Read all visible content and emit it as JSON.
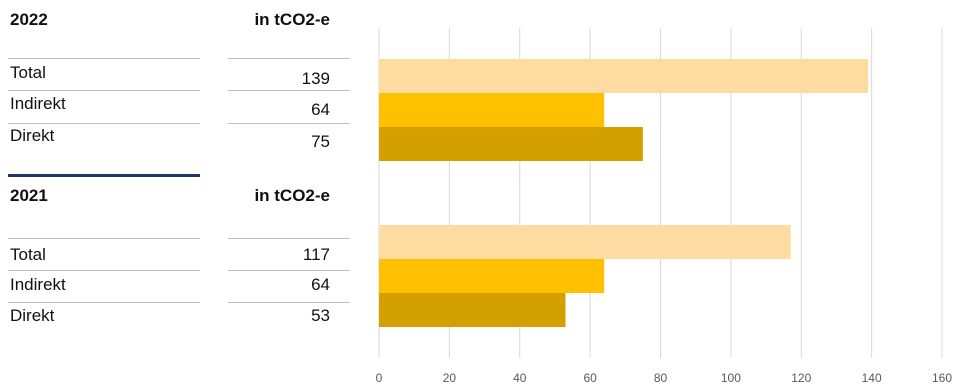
{
  "tables": [
    {
      "year": "2022",
      "unit_label": "in tCO2-e",
      "rows": [
        {
          "label": "Total",
          "value": "139"
        },
        {
          "label": "Indirekt",
          "value": "64"
        },
        {
          "label": "Direkt",
          "value": "75"
        }
      ]
    },
    {
      "year": "2021",
      "unit_label": "in tCO2-e",
      "rows": [
        {
          "label": "Total",
          "value": "117"
        },
        {
          "label": "Indirekt",
          "value": "64"
        },
        {
          "label": "Direkt",
          "value": "53"
        }
      ]
    }
  ],
  "colors": {
    "total": "#fedba0",
    "indirekt": "#ffc000",
    "direkt": "#d4a000",
    "separator": "#1f3864",
    "grid": "#d9d9d9"
  },
  "chart_data": {
    "type": "bar",
    "orientation": "horizontal",
    "groups": [
      {
        "year": "2022",
        "categories": [
          "Total",
          "Indirekt",
          "Direkt"
        ],
        "values": [
          139,
          64,
          75
        ]
      },
      {
        "year": "2021",
        "categories": [
          "Total",
          "Indirekt",
          "Direkt"
        ],
        "values": [
          117,
          64,
          53
        ]
      }
    ],
    "xlim": [
      0,
      160
    ],
    "xticks": [
      0,
      20,
      40,
      60,
      80,
      100,
      120,
      140,
      160
    ],
    "grid": true,
    "title": "",
    "xlabel": "",
    "ylabel": ""
  }
}
